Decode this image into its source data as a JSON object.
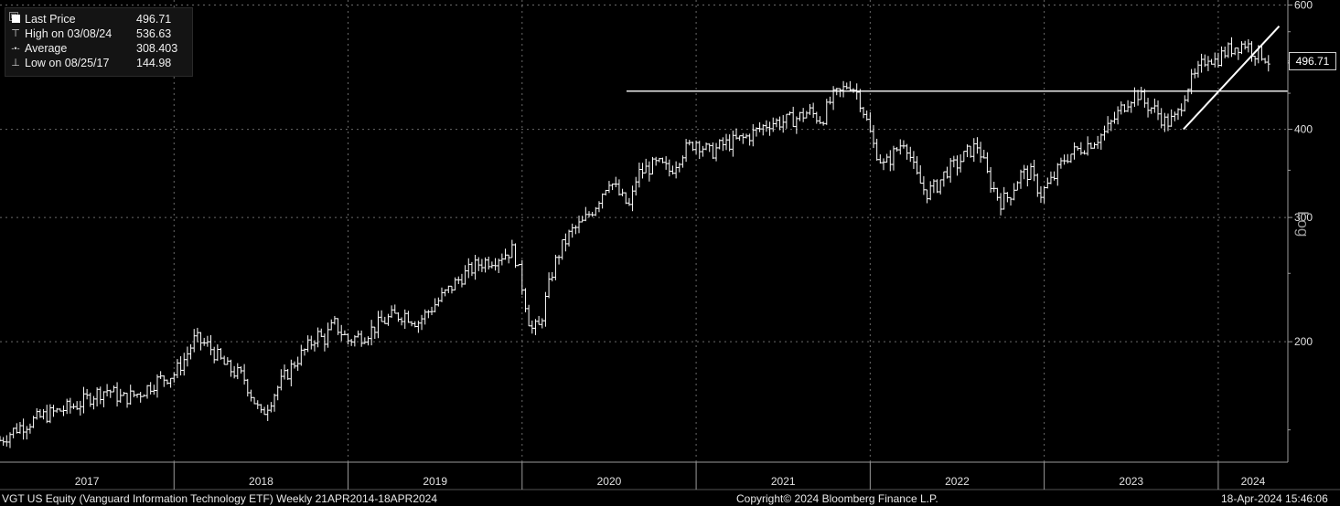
{
  "legend": {
    "collapse_glyph": "⊟",
    "last_price": {
      "label": "Last Price",
      "value": "496.71"
    },
    "high": {
      "label": "High on 03/08/24",
      "value": "536.63"
    },
    "average": {
      "label": "Average",
      "value": "308.403"
    },
    "low": {
      "label": "Low on 08/25/17",
      "value": "144.98"
    },
    "markers": {
      "high": "⊤",
      "average": "-•-",
      "low": "⊥"
    }
  },
  "last_price_tag": "496.71",
  "axis": {
    "scale_label": "Log"
  },
  "footer": {
    "left": "VGT US Equity (Vanguard Information Technology ETF)  Weekly 21APR2014-18APR2024",
    "center": "Copyright© 2024 Bloomberg Finance L.P.",
    "right": "18-Apr-2024 15:46:06"
  },
  "colors": {
    "background": "#000000",
    "price": "#ffffff",
    "grid": "#6a6a6a",
    "axis": "#9a9a9a"
  },
  "chart_data": {
    "type": "line",
    "style": "weekly OHLC bars",
    "y_scale": "log",
    "ylim": [
      135,
      610
    ],
    "y_ticks": [
      200,
      300,
      400,
      600
    ],
    "y_tick_labels": [
      "200",
      "300",
      "400",
      "600"
    ],
    "x_range": [
      2017.0,
      2024.4
    ],
    "x_ticks": [
      2017,
      2018,
      2019,
      2020,
      2021,
      2022,
      2023,
      2024
    ],
    "x_tick_labels": [
      "2017",
      "2018",
      "2019",
      "2020",
      "2021",
      "2022",
      "2023",
      "2024"
    ],
    "grid": true,
    "legend_placement": "top-left",
    "series": [
      {
        "name": "Last Price",
        "x": [
          2017.0,
          2017.1,
          2017.25,
          2017.35,
          2017.45,
          2017.55,
          2017.62,
          2017.7,
          2017.8,
          2017.9,
          2018.0,
          2018.06,
          2018.12,
          2018.2,
          2018.3,
          2018.4,
          2018.5,
          2018.6,
          2018.7,
          2018.78,
          2018.82,
          2018.86,
          2018.92,
          2019.0,
          2019.1,
          2019.18,
          2019.25,
          2019.33,
          2019.4,
          2019.47,
          2019.55,
          2019.65,
          2019.75,
          2019.85,
          2019.95,
          2020.0,
          2020.05,
          2020.1,
          2020.14,
          2020.18,
          2020.22,
          2020.28,
          2020.35,
          2020.42,
          2020.5,
          2020.57,
          2020.62,
          2020.66,
          2020.72,
          2020.78,
          2020.85,
          2020.92,
          2021.0,
          2021.08,
          2021.15,
          2021.2,
          2021.28,
          2021.35,
          2021.42,
          2021.5,
          2021.58,
          2021.65,
          2021.72,
          2021.78,
          2021.83,
          2021.88,
          2021.93,
          2021.97,
          2022.02,
          2022.08,
          2022.14,
          2022.2,
          2022.26,
          2022.32,
          2022.38,
          2022.44,
          2022.5,
          2022.56,
          2022.62,
          2022.68,
          2022.75,
          2022.8,
          2022.86,
          2022.92,
          2022.98,
          2023.05,
          2023.12,
          2023.2,
          2023.28,
          2023.35,
          2023.42,
          2023.48,
          2023.53,
          2023.58,
          2023.64,
          2023.7,
          2023.76,
          2023.82,
          2023.86,
          2023.9,
          2023.94,
          2023.98,
          2024.04,
          2024.1,
          2024.16,
          2024.2,
          2024.26,
          2024.3
        ],
        "values": [
          144.98,
          151,
          157,
          160,
          163,
          169,
          171,
          166,
          169,
          176,
          180,
          189,
          202,
          197,
          184,
          178,
          157,
          173,
          188,
          198,
          205,
          201,
          212,
          201,
          205,
          212,
          217,
          219,
          213,
          222,
          233,
          247,
          258,
          263,
          270,
          240,
          208,
          210,
          232,
          255,
          270,
          286,
          295,
          312,
          340,
          320,
          310,
          345,
          352,
          357,
          349,
          371,
          385,
          370,
          380,
          383,
          389,
          398,
          409,
          410,
          415,
          424,
          412,
          443,
          451,
          466,
          449,
          419,
          379,
          354,
          371,
          388,
          345,
          325,
          332,
          350,
          357,
          371,
          380,
          340,
          316,
          322,
          345,
          347,
          324,
          340,
          365,
          375,
          385,
          396,
          420,
          440,
          452,
          435,
          425,
          408,
          415,
          460,
          472,
          490,
          510,
          500,
          515,
          525,
          530,
          515,
          510,
          496.71
        ]
      }
    ],
    "annotations": [
      {
        "type": "horizontal-line",
        "y": 453,
        "x_start": 2020.6,
        "x_end": 2024.4
      },
      {
        "type": "trendline",
        "x": [
          2023.8,
          2024.35
        ],
        "y": [
          400,
          560
        ]
      }
    ]
  }
}
